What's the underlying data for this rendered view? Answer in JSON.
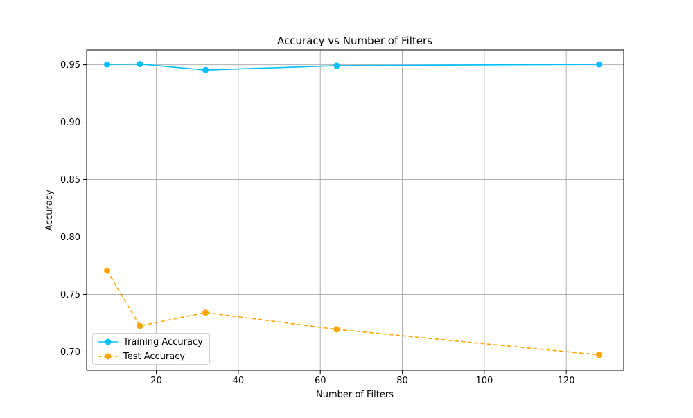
{
  "chart_data": {
    "type": "line",
    "title": "Accuracy vs Number of Filters",
    "xlabel": "Number of Filters",
    "ylabel": "Accuracy",
    "xlim": [
      3,
      134
    ],
    "ylim": [
      0.684,
      0.963
    ],
    "xticks": [
      20,
      40,
      60,
      80,
      100,
      120
    ],
    "yticks": [
      0.7,
      0.75,
      0.8,
      0.85,
      0.9,
      0.95
    ],
    "xtick_labels": [
      "20",
      "40",
      "60",
      "80",
      "100",
      "120"
    ],
    "ytick_labels": [
      "0.70",
      "0.75",
      "0.80",
      "0.85",
      "0.90",
      "0.95"
    ],
    "grid": true,
    "legend_position": "lower-left",
    "x": [
      8,
      16,
      32,
      64,
      128
    ],
    "series": [
      {
        "name": "Training Accuracy",
        "values": [
          0.9503,
          0.9506,
          0.9454,
          0.9492,
          0.9503
        ],
        "color": "#00bfff",
        "linestyle": "solid",
        "marker": "circle"
      },
      {
        "name": "Test Accuracy",
        "values": [
          0.7707,
          0.7226,
          0.7342,
          0.7196,
          0.6974
        ],
        "color": "#ffa500",
        "linestyle": "dashed",
        "marker": "circle"
      }
    ]
  }
}
